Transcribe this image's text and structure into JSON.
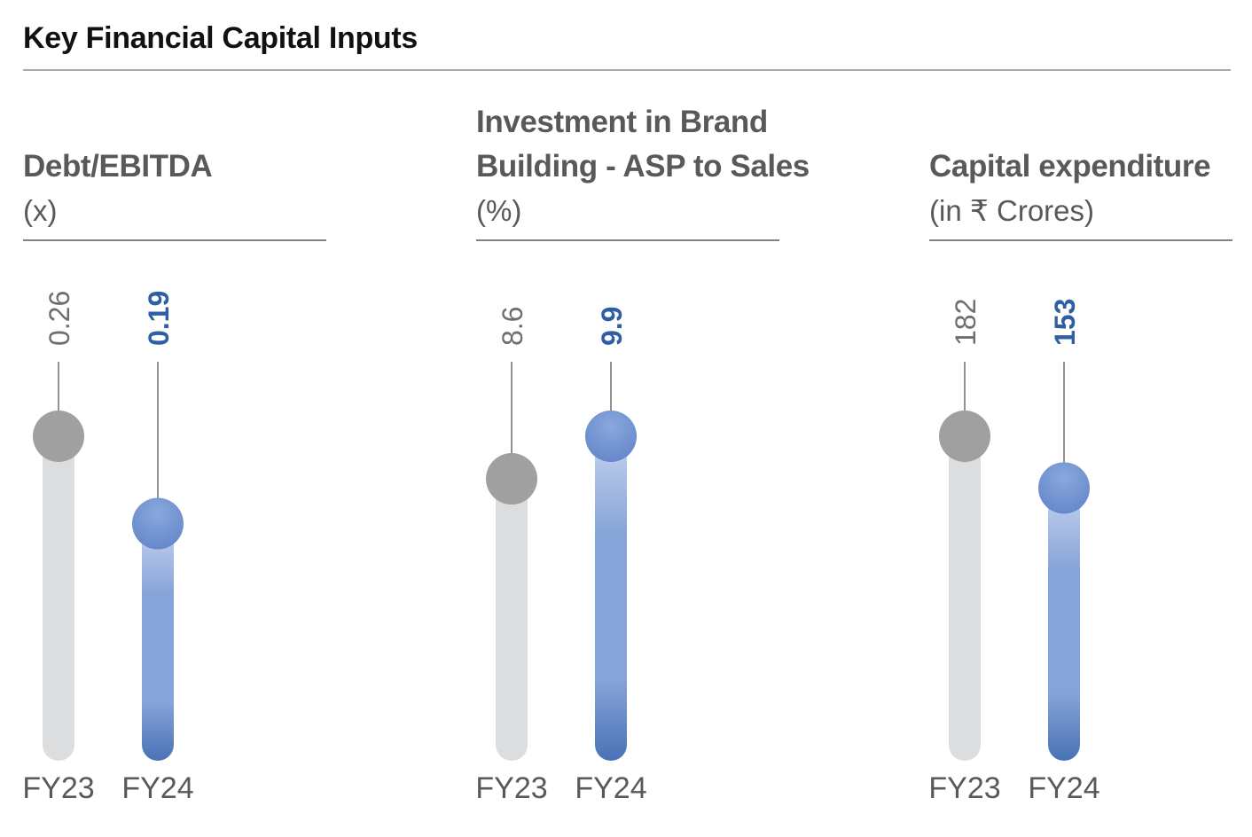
{
  "title": "Key Financial Capital Inputs",
  "colors": {
    "prior_year_dot": "#a0a0a0",
    "prior_year_bar": "#dcdddf",
    "current_year_dot": "#6f90cf",
    "current_year_bar_top": "#c6d3ef",
    "current_year_bar_mid": "#86a4d8",
    "current_year_bar_bottom": "#4a72b6",
    "current_year_label": "#2f5ea4"
  },
  "chart_data": [
    {
      "type": "bar",
      "title_lines": [
        "Debt/EBITDA"
      ],
      "unit": "(x)",
      "categories": [
        "FY23",
        "FY24"
      ],
      "values": [
        0.26,
        0.19
      ],
      "value_labels": [
        "0.26",
        "0.19"
      ]
    },
    {
      "type": "bar",
      "title_lines": [
        "Investment in Brand",
        "Building - ASP to Sales"
      ],
      "unit": "(%)",
      "categories": [
        "FY23",
        "FY24"
      ],
      "values": [
        8.6,
        9.9
      ],
      "value_labels": [
        "8.6",
        "9.9"
      ]
    },
    {
      "type": "bar",
      "title_lines": [
        "Capital expenditure"
      ],
      "unit": "(in ₹ Crores)",
      "categories": [
        "FY23",
        "FY24"
      ],
      "values": [
        182,
        153
      ],
      "value_labels": [
        "182",
        "153"
      ]
    }
  ]
}
